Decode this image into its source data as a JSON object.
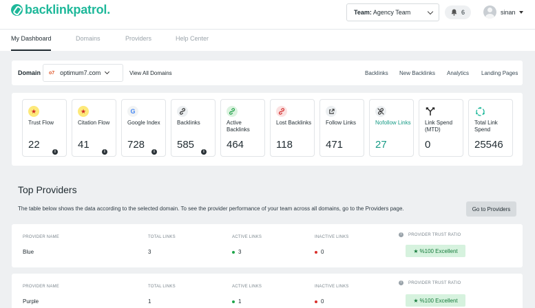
{
  "brand": {
    "name": "backlinkpatrol",
    "dot": "."
  },
  "header": {
    "team_prefix": "Team:",
    "team_name": "Agency Team",
    "notification_count": "6",
    "user_name": "sinan"
  },
  "nav": {
    "tabs": [
      {
        "label": "My Dashboard",
        "active": true
      },
      {
        "label": "Domains"
      },
      {
        "label": "Providers"
      },
      {
        "label": "Help Center"
      }
    ]
  },
  "domain_bar": {
    "label": "Domain",
    "favicon": "o7",
    "selected_domain": "optimum7.com",
    "view_all": "View All Domains",
    "links": [
      "Backlinks",
      "New Backlinks",
      "Analytics",
      "Landing Pages"
    ]
  },
  "stats": [
    {
      "label": "Trust Flow",
      "value": "22",
      "icon": "star-icon",
      "info": true
    },
    {
      "label": "Citation Flow",
      "value": "41",
      "icon": "star-icon",
      "info": true
    },
    {
      "label": "Google Index",
      "value": "728",
      "icon": "google-icon",
      "info": true
    },
    {
      "label": "Backlinks",
      "value": "585",
      "icon": "link-icon",
      "info": true
    },
    {
      "label": "Active Backlinks",
      "value": "464",
      "icon": "active-link-icon"
    },
    {
      "label": "Lost Backlinks",
      "value": "118",
      "icon": "lost-link-icon"
    },
    {
      "label": "Follow Links",
      "value": "471",
      "icon": "external-link-icon"
    },
    {
      "label": "Nofollow Links",
      "value": "27",
      "icon": "nofollow-link-icon",
      "accent": true
    },
    {
      "label": "Link Spend (MTD)",
      "value": "0",
      "icon": "split-arrows-icon"
    },
    {
      "label": "Total Link Spend",
      "value": "25546",
      "icon": "cycle-icon"
    }
  ],
  "providers_section": {
    "title": "Top Providers",
    "description": "The table below shows the data according to the selected domain. To see the provider performance of your team across all domains, go to the Providers page.",
    "button": "Go to Providers",
    "columns": [
      "PROVIDER NAME",
      "TOTAL LINKS",
      "ACTIVE LINKS",
      "INACTIVE LINKS",
      "PROVIDER TRUST RATIO"
    ],
    "rows": [
      {
        "name": "Blue",
        "total": "3",
        "active": "3",
        "inactive": "0",
        "trust": "%100 Excellent"
      },
      {
        "name": "Purple",
        "total": "1",
        "active": "1",
        "inactive": "0",
        "trust": "%100 Excellent"
      }
    ]
  },
  "colors": {
    "brand": "#1eb89a",
    "accent_teal": "#159a85",
    "badge_bg": "#d6f2de",
    "badge_text": "#147a3a"
  }
}
